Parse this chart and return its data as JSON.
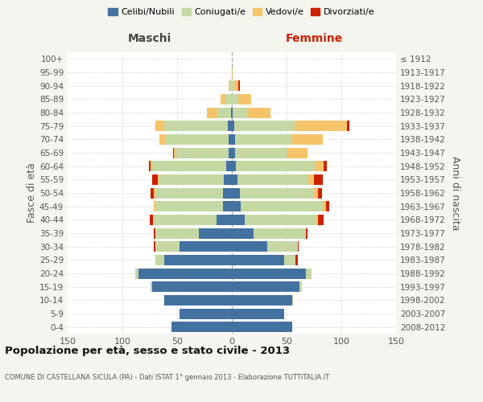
{
  "age_groups": [
    "0-4",
    "5-9",
    "10-14",
    "15-19",
    "20-24",
    "25-29",
    "30-34",
    "35-39",
    "40-44",
    "45-49",
    "50-54",
    "55-59",
    "60-64",
    "65-69",
    "70-74",
    "75-79",
    "80-84",
    "85-89",
    "90-94",
    "95-99",
    "100+"
  ],
  "birth_years": [
    "2008-2012",
    "2003-2007",
    "1998-2002",
    "1993-1997",
    "1988-1992",
    "1983-1987",
    "1978-1982",
    "1973-1977",
    "1968-1972",
    "1963-1967",
    "1958-1962",
    "1953-1957",
    "1948-1952",
    "1943-1947",
    "1938-1942",
    "1933-1937",
    "1928-1932",
    "1923-1927",
    "1918-1922",
    "1913-1917",
    "≤ 1912"
  ],
  "colors": {
    "celibe": "#4472a0",
    "coniugato": "#c5d8a4",
    "vedovo": "#f5c46a",
    "divorziato": "#cc2200"
  },
  "maschi": {
    "celibe": [
      55,
      48,
      62,
      73,
      85,
      62,
      48,
      30,
      14,
      8,
      8,
      7,
      5,
      3,
      3,
      4,
      1,
      0,
      0,
      0,
      0
    ],
    "coniugato": [
      0,
      0,
      0,
      1,
      3,
      8,
      22,
      40,
      58,
      62,
      62,
      60,
      68,
      48,
      58,
      58,
      12,
      6,
      2,
      0,
      0
    ],
    "vedovo": [
      0,
      0,
      0,
      0,
      0,
      0,
      0,
      0,
      0,
      1,
      1,
      1,
      1,
      2,
      5,
      8,
      10,
      4,
      1,
      0,
      0
    ],
    "divorziato": [
      0,
      0,
      0,
      0,
      0,
      0,
      1,
      1,
      3,
      0,
      3,
      5,
      2,
      1,
      0,
      0,
      0,
      0,
      0,
      0,
      0
    ]
  },
  "femmine": {
    "nubile": [
      55,
      48,
      55,
      62,
      68,
      48,
      32,
      20,
      12,
      8,
      7,
      5,
      4,
      3,
      3,
      2,
      1,
      0,
      0,
      0,
      0
    ],
    "coniugata": [
      0,
      0,
      1,
      2,
      5,
      10,
      28,
      48,
      65,
      75,
      68,
      65,
      72,
      48,
      52,
      55,
      14,
      6,
      2,
      0,
      0
    ],
    "vedova": [
      0,
      0,
      0,
      0,
      0,
      0,
      0,
      0,
      2,
      3,
      4,
      5,
      8,
      18,
      28,
      48,
      20,
      12,
      4,
      1,
      0
    ],
    "divorziata": [
      0,
      0,
      0,
      0,
      0,
      2,
      1,
      1,
      5,
      3,
      3,
      8,
      3,
      0,
      0,
      2,
      0,
      0,
      1,
      0,
      0
    ]
  },
  "title": "Popolazione per età, sesso e stato civile - 2013",
  "subtitle": "COMUNE DI CASTELLANA SICULA (PA) - Dati ISTAT 1° gennaio 2013 - Elaborazione TUTTITALIA.IT",
  "xlabel_left": "Maschi",
  "xlabel_right": "Femmine",
  "ylabel_left": "Fasce di età",
  "ylabel_right": "Anni di nascita",
  "xlim": 150,
  "background_color": "#f5f5f0",
  "plot_bg_color": "#ffffff",
  "legend_labels": [
    "Celibi/Nubili",
    "Coniugati/e",
    "Vedovi/e",
    "Divorziati/e"
  ]
}
